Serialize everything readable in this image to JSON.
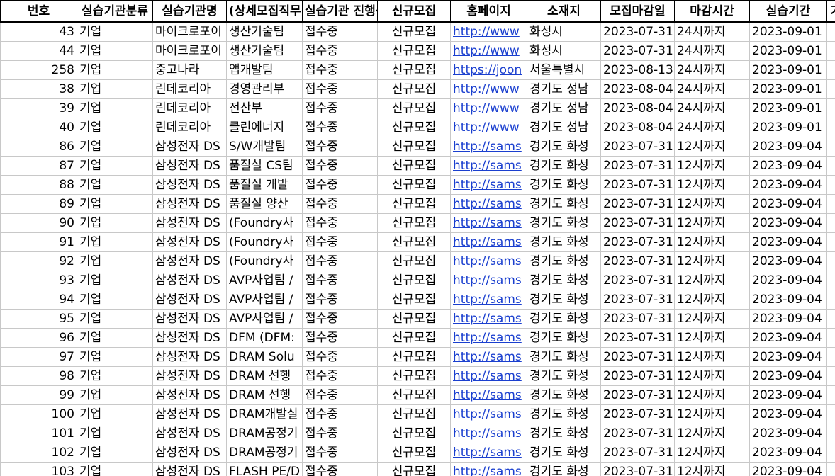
{
  "sheet": {
    "headers": [
      "번호",
      "실습기관분류",
      "실습기관명",
      "(상세모집직무)",
      "실습기관 진행상황",
      "신규모집",
      "홈페이지",
      "소재지",
      "모집마감일",
      "마감시간",
      "실습기간",
      "기"
    ],
    "rows": [
      [
        "43",
        "기업",
        "마이크로포이",
        "생산기술팀",
        "접수중",
        "신규모집",
        "http://www",
        "화성시",
        "2023-07-31",
        "24시까지",
        "2023-09-01"
      ],
      [
        "44",
        "기업",
        "마이크로포이",
        "생산기술팀",
        "접수중",
        "신규모집",
        "http://www",
        "화성시",
        "2023-07-31",
        "24시까지",
        "2023-09-01"
      ],
      [
        "258",
        "기업",
        "중고나라",
        "앱개발팀",
        "접수중",
        "신규모집",
        "https://joon",
        "서울특별시",
        "2023-08-13",
        "24시까지",
        "2023-09-01"
      ],
      [
        "38",
        "기업",
        "린데코리아",
        "경영관리부",
        "접수중",
        "신규모집",
        "http://www",
        "경기도 성남",
        "2023-08-04",
        "24시까지",
        "2023-09-01"
      ],
      [
        "39",
        "기업",
        "린데코리아",
        "전산부",
        "접수중",
        "신규모집",
        "http://www",
        "경기도 성남",
        "2023-08-04",
        "24시까지",
        "2023-09-01"
      ],
      [
        "40",
        "기업",
        "린데코리아",
        "클린에너지",
        "접수중",
        "신규모집",
        "http://www",
        "경기도 성남",
        "2023-08-04",
        "24시까지",
        "2023-09-01"
      ],
      [
        "86",
        "기업",
        "삼성전자 DS",
        "S/W개발팀",
        "접수중",
        "신규모집",
        "http://sams",
        "경기도 화성",
        "2023-07-31",
        "12시까지",
        "2023-09-04"
      ],
      [
        "87",
        "기업",
        "삼성전자 DS",
        "품질실 CS팀",
        "접수중",
        "신규모집",
        "http://sams",
        "경기도 화성",
        "2023-07-31",
        "12시까지",
        "2023-09-04"
      ],
      [
        "88",
        "기업",
        "삼성전자 DS",
        "품질실 개발",
        "접수중",
        "신규모집",
        "http://sams",
        "경기도 화성",
        "2023-07-31",
        "12시까지",
        "2023-09-04"
      ],
      [
        "89",
        "기업",
        "삼성전자 DS",
        "품질실 양산",
        "접수중",
        "신규모집",
        "http://sams",
        "경기도 화성",
        "2023-07-31",
        "12시까지",
        "2023-09-04"
      ],
      [
        "90",
        "기업",
        "삼성전자 DS",
        "(Foundry사",
        "접수중",
        "신규모집",
        "http://sams",
        "경기도 화성",
        "2023-07-31",
        "12시까지",
        "2023-09-04"
      ],
      [
        "91",
        "기업",
        "삼성전자 DS",
        "(Foundry사",
        "접수중",
        "신규모집",
        "http://sams",
        "경기도 화성",
        "2023-07-31",
        "12시까지",
        "2023-09-04"
      ],
      [
        "92",
        "기업",
        "삼성전자 DS",
        "(Foundry사",
        "접수중",
        "신규모집",
        "http://sams",
        "경기도 화성",
        "2023-07-31",
        "12시까지",
        "2023-09-04"
      ],
      [
        "93",
        "기업",
        "삼성전자 DS",
        "AVP사업팀 /",
        "접수중",
        "신규모집",
        "http://sams",
        "경기도 화성",
        "2023-07-31",
        "12시까지",
        "2023-09-04"
      ],
      [
        "94",
        "기업",
        "삼성전자 DS",
        "AVP사업팀 /",
        "접수중",
        "신규모집",
        "http://sams",
        "경기도 화성",
        "2023-07-31",
        "12시까지",
        "2023-09-04"
      ],
      [
        "95",
        "기업",
        "삼성전자 DS",
        "AVP사업팀 /",
        "접수중",
        "신규모집",
        "http://sams",
        "경기도 화성",
        "2023-07-31",
        "12시까지",
        "2023-09-04"
      ],
      [
        "96",
        "기업",
        "삼성전자 DS",
        "DFM (DFM:",
        "접수중",
        "신규모집",
        "http://sams",
        "경기도 화성",
        "2023-07-31",
        "12시까지",
        "2023-09-04"
      ],
      [
        "97",
        "기업",
        "삼성전자 DS",
        "DRAM Solu",
        "접수중",
        "신규모집",
        "http://sams",
        "경기도 화성",
        "2023-07-31",
        "12시까지",
        "2023-09-04"
      ],
      [
        "98",
        "기업",
        "삼성전자 DS",
        "DRAM 선행",
        "접수중",
        "신규모집",
        "http://sams",
        "경기도 화성",
        "2023-07-31",
        "12시까지",
        "2023-09-04"
      ],
      [
        "99",
        "기업",
        "삼성전자 DS",
        "DRAM 선행",
        "접수중",
        "신규모집",
        "http://sams",
        "경기도 화성",
        "2023-07-31",
        "12시까지",
        "2023-09-04"
      ],
      [
        "100",
        "기업",
        "삼성전자 DS",
        "DRAM개발실",
        "접수중",
        "신규모집",
        "http://sams",
        "경기도 화성",
        "2023-07-31",
        "12시까지",
        "2023-09-04"
      ],
      [
        "101",
        "기업",
        "삼성전자 DS",
        "DRAM공정기",
        "접수중",
        "신규모집",
        "http://sams",
        "경기도 화성",
        "2023-07-31",
        "12시까지",
        "2023-09-04"
      ],
      [
        "102",
        "기업",
        "삼성전자 DS",
        "DRAM공정기",
        "접수중",
        "신규모집",
        "http://sams",
        "경기도 화성",
        "2023-07-31",
        "12시까지",
        "2023-09-04"
      ],
      [
        "103",
        "기업",
        "삼성전자 DS",
        "FLASH PE/D",
        "접수중",
        "신규모집",
        "http://sams",
        "경기도 화성",
        "2023-07-31",
        "12시까지",
        "2023-09-04"
      ]
    ]
  }
}
